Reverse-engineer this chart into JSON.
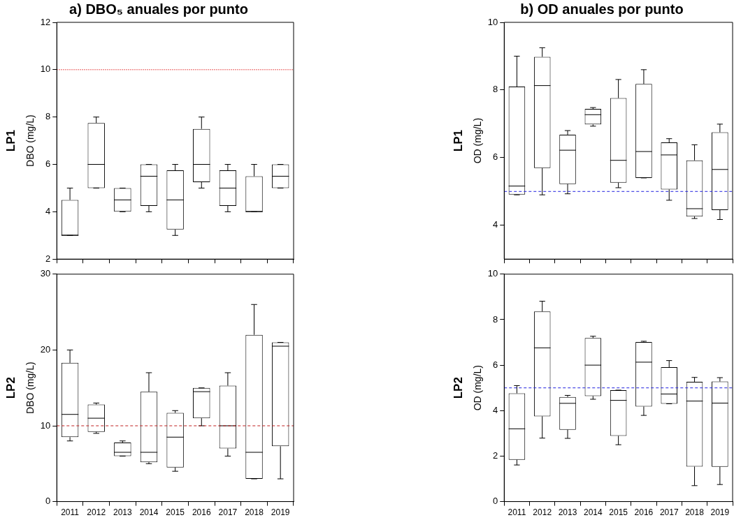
{
  "chart_data": [
    {
      "type": "box",
      "title": "a) DBO₅ anuales por punto",
      "ylabel": "DBO (mg/L)",
      "annotations": [
        "LP1"
      ],
      "categories": [
        "2011",
        "2012",
        "2013",
        "2014",
        "2015",
        "2016",
        "2017",
        "2018",
        "2019"
      ],
      "tick_labels": "y",
      "ylim": [
        2,
        12
      ],
      "yticks": [
        2,
        4,
        6,
        8,
        10,
        12
      ],
      "ref_lines": [
        {
          "axis": "y",
          "value": 10,
          "color": "#e02020",
          "line_style": "dotted"
        }
      ],
      "boxes": [
        {
          "low": 3,
          "q1": 3,
          "median": 3,
          "q3": 4.5,
          "high": 5
        },
        {
          "low": 5,
          "q1": 5,
          "median": 6,
          "q3": 7.75,
          "high": 8
        },
        {
          "low": 4,
          "q1": 4,
          "median": 4.5,
          "q3": 5,
          "high": 5
        },
        {
          "low": 4,
          "q1": 4.25,
          "median": 5.5,
          "q3": 6,
          "high": 6
        },
        {
          "low": 3,
          "q1": 3.25,
          "median": 4.5,
          "q3": 5.75,
          "high": 6
        },
        {
          "low": 5,
          "q1": 5.25,
          "median": 6,
          "q3": 7.5,
          "high": 8
        },
        {
          "low": 4,
          "q1": 4.25,
          "median": 5,
          "q3": 5.75,
          "high": 6
        },
        {
          "low": 4,
          "q1": 4,
          "median": 4,
          "q3": 5.5,
          "high": 6
        },
        {
          "low": 5,
          "q1": 5,
          "median": 5.5,
          "q3": 6,
          "high": 6
        }
      ]
    },
    {
      "type": "box",
      "title": "b) OD anuales por punto",
      "ylabel": "OD (mg/L)",
      "annotations": [
        "LP1"
      ],
      "categories": [
        "2011",
        "2012",
        "2013",
        "2014",
        "2015",
        "2016",
        "2017",
        "2018",
        "2019"
      ],
      "tick_labels": "y",
      "ylim": [
        3,
        10
      ],
      "yticks": [
        4,
        6,
        8,
        10
      ],
      "ref_lines": [
        {
          "axis": "y",
          "value": 5,
          "color": "#2020e0",
          "line_style": "dashed"
        }
      ],
      "boxes": [
        {
          "low": 4.9,
          "q1": 4.91,
          "median": 5.16,
          "q3": 8.1,
          "high": 9.0
        },
        {
          "low": 4.9,
          "q1": 5.69,
          "median": 8.13,
          "q3": 8.98,
          "high": 9.25
        },
        {
          "low": 4.93,
          "q1": 5.22,
          "median": 6.22,
          "q3": 6.68,
          "high": 6.8
        },
        {
          "low": 6.93,
          "q1": 6.98,
          "median": 7.27,
          "q3": 7.44,
          "high": 7.48
        },
        {
          "low": 5.11,
          "q1": 5.26,
          "median": 5.92,
          "q3": 7.76,
          "high": 8.31
        },
        {
          "low": 5.4,
          "q1": 5.4,
          "median": 6.18,
          "q3": 8.18,
          "high": 8.6
        },
        {
          "low": 4.74,
          "q1": 5.06,
          "median": 6.08,
          "q3": 6.45,
          "high": 6.56
        },
        {
          "low": 4.2,
          "q1": 4.26,
          "median": 4.49,
          "q3": 5.92,
          "high": 6.38
        },
        {
          "low": 4.17,
          "q1": 4.45,
          "median": 5.65,
          "q3": 6.75,
          "high": 6.99
        }
      ]
    },
    {
      "type": "box",
      "ylabel": "DBO (mg/L)",
      "annotations": [
        "LP2"
      ],
      "categories": [
        "2011",
        "2012",
        "2013",
        "2014",
        "2015",
        "2016",
        "2017",
        "2018",
        "2019"
      ],
      "ylim": [
        0,
        30
      ],
      "yticks": [
        0,
        10,
        20,
        30
      ],
      "ref_lines": [
        {
          "axis": "y",
          "value": 10,
          "color": "#c02020",
          "line_style": "dashed"
        }
      ],
      "boxes": [
        {
          "low": 8.0,
          "q1": 8.5,
          "median": 11.5,
          "q3": 18.3,
          "high": 20
        },
        {
          "low": 9.0,
          "q1": 9.2,
          "median": 11.0,
          "q3": 12.8,
          "high": 13.0
        },
        {
          "low": 6.0,
          "q1": 6.0,
          "median": 6.5,
          "q3": 7.8,
          "high": 8.0
        },
        {
          "low": 5.0,
          "q1": 5.2,
          "median": 6.5,
          "q3": 14.5,
          "high": 17.0
        },
        {
          "low": 4.0,
          "q1": 4.5,
          "median": 8.5,
          "q3": 11.7,
          "high": 12.0
        },
        {
          "low": 10,
          "q1": 11.0,
          "median": 14.5,
          "q3": 15,
          "high": 15
        },
        {
          "low": 6.0,
          "q1": 7.0,
          "median": 10,
          "q3": 15.3,
          "high": 17
        },
        {
          "low": 3.0,
          "q1": 3.0,
          "median": 6.5,
          "q3": 22.0,
          "high": 26.0
        },
        {
          "low": 3.0,
          "q1": 7.3,
          "median": 20.5,
          "q3": 21.0,
          "high": 21.0
        }
      ]
    },
    {
      "type": "box",
      "ylabel": "OD (mg/L)",
      "annotations": [
        "LP2"
      ],
      "categories": [
        "2011",
        "2012",
        "2013",
        "2014",
        "2015",
        "2016",
        "2017",
        "2018",
        "2019"
      ],
      "ylim": [
        0,
        10
      ],
      "yticks": [
        0,
        2,
        4,
        6,
        8,
        10
      ],
      "ref_lines": [
        {
          "axis": "y",
          "value": 5,
          "color": "#2020e0",
          "line_style": "dashed"
        }
      ],
      "boxes": [
        {
          "low": 1.61,
          "q1": 1.84,
          "median": 3.2,
          "q3": 4.76,
          "high": 5.1
        },
        {
          "low": 2.79,
          "q1": 3.75,
          "median": 6.76,
          "q3": 8.36,
          "high": 8.81
        },
        {
          "low": 2.78,
          "q1": 3.16,
          "median": 4.32,
          "q3": 4.6,
          "high": 4.67
        },
        {
          "low": 4.5,
          "q1": 4.64,
          "median": 6.0,
          "q3": 7.19,
          "high": 7.27
        },
        {
          "low": 2.5,
          "q1": 2.89,
          "median": 4.45,
          "q3": 4.9,
          "high": 4.9
        },
        {
          "low": 3.79,
          "q1": 4.18,
          "median": 6.13,
          "q3": 7.02,
          "high": 7.05
        },
        {
          "low": 4.3,
          "q1": 4.3,
          "median": 4.73,
          "q3": 5.91,
          "high": 6.2
        },
        {
          "low": 0.7,
          "q1": 1.54,
          "median": 4.42,
          "q3": 5.27,
          "high": 5.46
        },
        {
          "low": 0.75,
          "q1": 1.53,
          "median": 4.33,
          "q3": 5.28,
          "high": 5.45
        }
      ]
    }
  ]
}
